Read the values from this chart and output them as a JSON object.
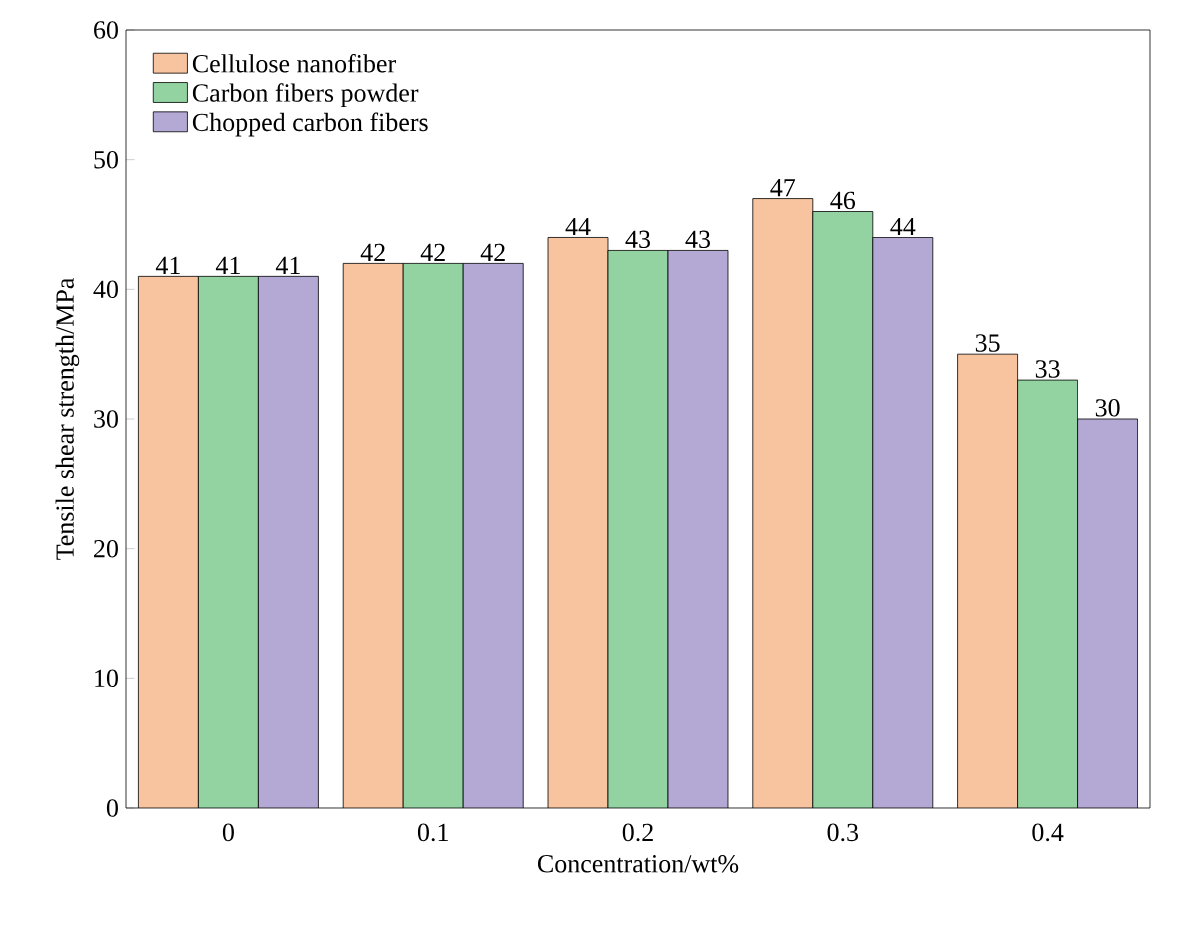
{
  "chart_data": {
    "type": "bar",
    "xlabel": "Concentration/wt%",
    "ylabel": "Tensile shear strength/MPa",
    "categories": [
      "0",
      "0.1",
      "0.2",
      "0.3",
      "0.4"
    ],
    "series": [
      {
        "name": "Cellulose nanofiber",
        "color": "#f8c4a0",
        "values": [
          41,
          42,
          44,
          47,
          35
        ]
      },
      {
        "name": "Carbon fibers powder",
        "color": "#93d3a2",
        "values": [
          41,
          42,
          43,
          46,
          33
        ]
      },
      {
        "name": "Chopped carbon fibers",
        "color": "#b4a9d4",
        "values": [
          41,
          42,
          43,
          44,
          30
        ]
      }
    ],
    "ylim": [
      0,
      60
    ],
    "yticks": [
      0,
      10,
      20,
      30,
      40,
      50,
      60
    ],
    "data_labels": true,
    "legend": "top left",
    "grid": false
  }
}
